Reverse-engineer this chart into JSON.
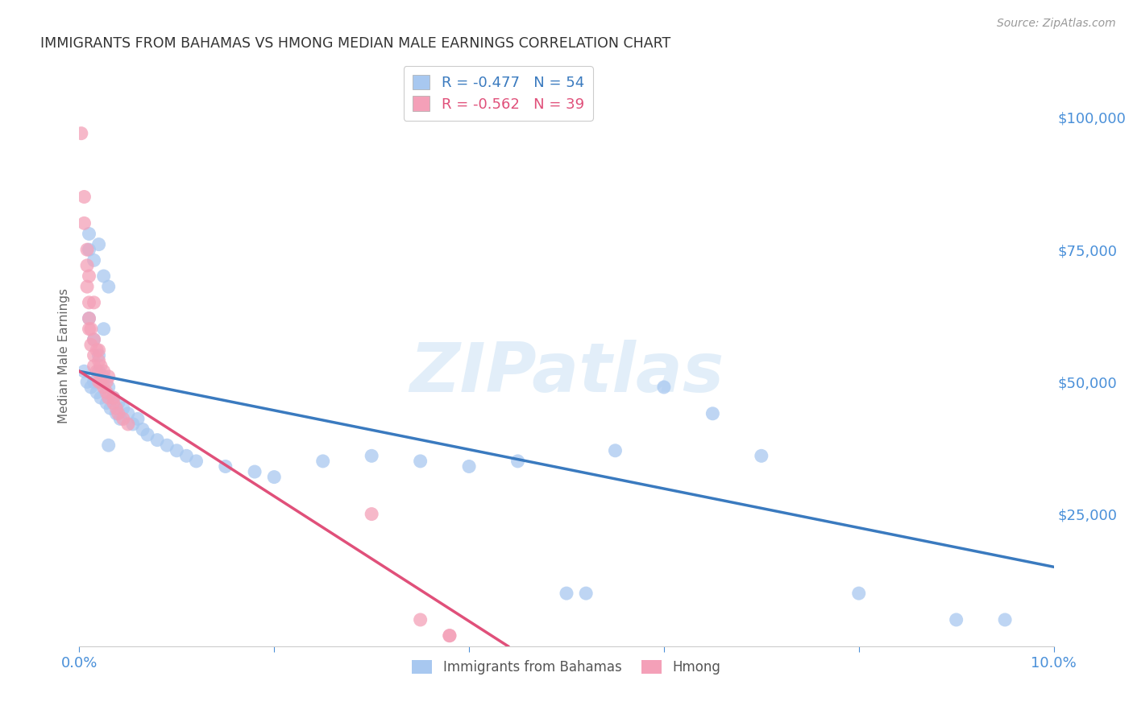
{
  "title": "IMMIGRANTS FROM BAHAMAS VS HMONG MEDIAN MALE EARNINGS CORRELATION CHART",
  "source": "Source: ZipAtlas.com",
  "ylabel": "Median Male Earnings",
  "ylabel_color": "#666666",
  "watermark": "ZIPatlas",
  "right_ytick_values": [
    100000,
    75000,
    50000,
    25000
  ],
  "right_ytick_color": "#4a90d9",
  "xlim": [
    0.0,
    0.1
  ],
  "ylim": [
    0,
    110000
  ],
  "bahamas_color": "#a8c8f0",
  "hmong_color": "#f4a0b8",
  "bahamas_line_color": "#3a7abf",
  "hmong_line_color": "#e0507a",
  "legend_bahamas_R": -0.477,
  "legend_bahamas_N": 54,
  "legend_hmong_R": -0.562,
  "legend_hmong_N": 39,
  "background_color": "#ffffff",
  "grid_color": "#e0e0e0",
  "xlabel_color": "#4a90d9",
  "xtick_color": "#4a90d9",
  "bahamas_x": [
    0.0005,
    0.0008,
    0.001,
    0.001,
    0.0012,
    0.0015,
    0.0015,
    0.0018,
    0.002,
    0.002,
    0.0022,
    0.0025,
    0.0025,
    0.0028,
    0.003,
    0.003,
    0.0032,
    0.0035,
    0.0038,
    0.004,
    0.0042,
    0.0045,
    0.005,
    0.0055,
    0.006,
    0.0065,
    0.007,
    0.008,
    0.009,
    0.01,
    0.011,
    0.012,
    0.015,
    0.018,
    0.02,
    0.025,
    0.03,
    0.035,
    0.04,
    0.045,
    0.05,
    0.052,
    0.055,
    0.06,
    0.065,
    0.07,
    0.08,
    0.09,
    0.095,
    0.002,
    0.001,
    0.0015,
    0.0025,
    0.003
  ],
  "bahamas_y": [
    52000,
    50000,
    75000,
    78000,
    49000,
    73000,
    50000,
    48000,
    76000,
    52000,
    47000,
    70000,
    51000,
    46000,
    68000,
    49000,
    45000,
    47000,
    44000,
    46000,
    43000,
    45000,
    44000,
    42000,
    43000,
    41000,
    40000,
    39000,
    38000,
    37000,
    36000,
    35000,
    34000,
    33000,
    32000,
    35000,
    36000,
    35000,
    34000,
    35000,
    10000,
    10000,
    37000,
    49000,
    44000,
    36000,
    10000,
    5000,
    5000,
    55000,
    62000,
    58000,
    60000,
    38000
  ],
  "hmong_x": [
    0.0002,
    0.0005,
    0.0008,
    0.001,
    0.001,
    0.0012,
    0.0015,
    0.0015,
    0.0018,
    0.002,
    0.0022,
    0.0025,
    0.0028,
    0.003,
    0.0035,
    0.0038,
    0.004,
    0.0045,
    0.005,
    0.0008,
    0.001,
    0.0015,
    0.002,
    0.0025,
    0.003,
    0.001,
    0.0015,
    0.0005,
    0.002,
    0.0008,
    0.0012,
    0.0018,
    0.0022,
    0.0028,
    0.0035,
    0.038,
    0.038,
    0.035,
    0.03
  ],
  "hmong_y": [
    97000,
    85000,
    68000,
    65000,
    60000,
    57000,
    55000,
    53000,
    52000,
    50000,
    50000,
    49000,
    48000,
    47000,
    46000,
    45000,
    44000,
    43000,
    42000,
    75000,
    62000,
    58000,
    54000,
    52000,
    51000,
    70000,
    65000,
    80000,
    56000,
    72000,
    60000,
    56000,
    53000,
    50000,
    47000,
    2000,
    2000,
    5000,
    25000
  ],
  "bahamas_line_x0": 0.0,
  "bahamas_line_y0": 52000,
  "bahamas_line_x1": 0.1,
  "bahamas_line_y1": 15000,
  "hmong_line_x0": 0.0,
  "hmong_line_y0": 52000,
  "hmong_line_x1": 0.044,
  "hmong_line_y1": 0
}
